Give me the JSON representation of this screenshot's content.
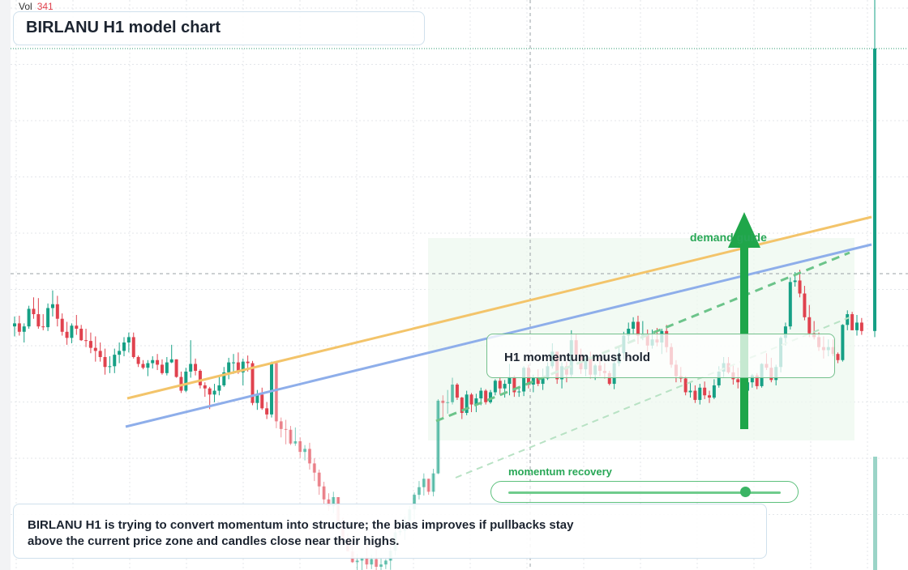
{
  "title": "BIRLANU H1 model chart",
  "volume": {
    "label": "Vol",
    "value": "341"
  },
  "annotations": {
    "hold_label": "H1 momentum must hold",
    "recovery_label": "momentum recovery",
    "demand_label": "demand guide",
    "note": "BIRLANU H1 is trying to convert momentum into structure; the bias improves if pullbacks stay above the current price zone and candles close near their highs."
  },
  "momentum_slider": {
    "level": 0.87
  },
  "colors": {
    "up": "#16a085",
    "down": "#e0424e",
    "orange_line": "#f3c46a",
    "blue_line": "#8eaeea",
    "green": "#1fa64a",
    "zone": "#eef8ef"
  },
  "chart_data": {
    "type": "candlestick",
    "title": "BIRLANU H1 model chart",
    "grid": true,
    "yrange": [
      0,
      100
    ],
    "candles": [
      [
        55.8,
        57.1,
        54.5,
        56.2
      ],
      [
        56.2,
        57.2,
        54.6,
        55.1
      ],
      [
        55.1,
        56.2,
        53.7,
        55.8
      ],
      [
        55.8,
        58.5,
        55.5,
        58.1
      ],
      [
        58.1,
        59.6,
        56.8,
        57.4
      ],
      [
        57.4,
        59.5,
        55.5,
        55.8
      ],
      [
        55.8,
        57.4,
        55.3,
        55.7
      ],
      [
        55.7,
        58.8,
        55.2,
        58.2
      ],
      [
        58.2,
        60.5,
        57.1,
        58.7
      ],
      [
        58.7,
        59.8,
        55.8,
        56.8
      ],
      [
        56.8,
        57.5,
        54.6,
        55.1
      ],
      [
        55.1,
        56.4,
        53.4,
        54.3
      ],
      [
        54.3,
        56.2,
        53.6,
        55.9
      ],
      [
        55.9,
        57.3,
        54.7,
        55.5
      ],
      [
        55.5,
        56.0,
        53.9,
        54.0
      ],
      [
        54.0,
        55.5,
        53.1,
        53.9
      ],
      [
        53.9,
        55.0,
        52.3,
        53.0
      ],
      [
        53.0,
        54.5,
        51.2,
        52.6
      ],
      [
        52.6,
        53.7,
        51.2,
        51.8
      ],
      [
        51.8,
        52.9,
        49.5,
        50.5
      ],
      [
        50.5,
        51.9,
        49.7,
        50.6
      ],
      [
        50.6,
        52.9,
        49.7,
        52.1
      ],
      [
        52.1,
        53.7,
        51.0,
        52.6
      ],
      [
        52.6,
        54.4,
        51.9,
        53.7
      ],
      [
        53.7,
        55.0,
        52.4,
        54.4
      ],
      [
        54.4,
        55.0,
        51.6,
        51.8
      ],
      [
        51.8,
        52.0,
        50.5,
        50.9
      ],
      [
        50.9,
        51.4,
        50.2,
        50.4
      ],
      [
        50.4,
        51.4,
        49.3,
        51.0
      ],
      [
        51.0,
        51.9,
        50.3,
        51.4
      ],
      [
        51.4,
        52.2,
        50.1,
        50.8
      ],
      [
        50.8,
        51.5,
        49.5,
        49.7
      ],
      [
        49.7,
        51.8,
        49.4,
        51.1
      ],
      [
        51.1,
        53.4,
        51.0,
        51.5
      ],
      [
        51.5,
        51.5,
        49.1,
        49.2
      ],
      [
        49.2,
        49.9,
        47.1,
        47.4
      ],
      [
        47.4,
        50.4,
        47.2,
        49.9
      ],
      [
        49.9,
        54.0,
        49.1,
        50.9
      ],
      [
        50.9,
        51.6,
        49.4,
        50.0
      ],
      [
        50.0,
        50.2,
        47.7,
        48.1
      ],
      [
        48.1,
        48.5,
        46.6,
        47.7
      ],
      [
        47.7,
        47.9,
        45.0,
        46.9
      ],
      [
        46.9,
        48.3,
        45.9,
        47.4
      ],
      [
        47.4,
        49.2,
        46.8,
        48.1
      ],
      [
        48.1,
        50.5,
        47.9,
        49.8
      ],
      [
        49.8,
        51.7,
        48.9,
        51.1
      ],
      [
        51.1,
        52.2,
        49.6,
        51.1
      ],
      [
        51.1,
        52.4,
        49.6,
        49.8
      ],
      [
        49.8,
        51.6,
        48.1,
        51.2
      ],
      [
        51.2,
        52.0,
        49.9,
        51.0
      ],
      [
        51.0,
        51.3,
        45.5,
        45.8
      ],
      [
        45.8,
        47.5,
        44.9,
        46.9
      ],
      [
        46.9,
        47.8,
        44.9,
        45.1
      ],
      [
        45.1,
        45.9,
        43.7,
        44.3
      ],
      [
        44.3,
        51.2,
        43.9,
        51.0
      ],
      [
        51.0,
        51.3,
        42.5,
        43.4
      ],
      [
        43.4,
        43.9,
        41.3,
        42.4
      ],
      [
        42.4,
        43.6,
        40.4,
        42.3
      ],
      [
        42.3,
        42.8,
        40.3,
        40.5
      ],
      [
        40.5,
        42.6,
        40.2,
        40.8
      ],
      [
        40.8,
        41.3,
        38.6,
        39.4
      ],
      [
        39.4,
        40.3,
        38.3,
        39.8
      ],
      [
        39.8,
        40.6,
        37.1,
        37.9
      ],
      [
        37.9,
        38.6,
        35.6,
        36.7
      ],
      [
        36.7,
        37.1,
        33.8,
        34.9
      ],
      [
        34.9,
        35.5,
        32.6,
        33.2
      ],
      [
        33.2,
        34.0,
        31.7,
        32.3
      ],
      [
        32.3,
        34.2,
        31.4,
        33.5
      ],
      [
        33.5,
        33.5,
        30.2,
        30.3
      ],
      [
        30.3,
        30.8,
        27.5,
        28.1
      ],
      [
        28.1,
        28.7,
        26.4,
        26.4
      ],
      [
        26.4,
        27.3,
        24.9,
        25.0
      ],
      [
        25.0,
        26.1,
        23.6,
        25.2
      ],
      [
        25.2,
        25.7,
        23.7,
        25.6
      ],
      [
        25.6,
        27.4,
        24.1,
        24.7
      ],
      [
        24.7,
        26.0,
        24.1,
        25.4
      ],
      [
        25.4,
        26.6,
        23.9,
        24.4
      ],
      [
        24.4,
        25.6,
        23.1,
        24.7
      ],
      [
        24.7,
        25.4,
        24.1,
        25.2
      ],
      [
        25.2,
        27.0,
        24.0,
        26.5
      ],
      [
        26.5,
        29.3,
        25.9,
        28.9
      ],
      [
        28.9,
        30.2,
        28.5,
        29.1
      ],
      [
        29.1,
        31.0,
        27.9,
        30.4
      ],
      [
        30.4,
        32.4,
        29.9,
        31.9
      ],
      [
        31.9,
        34.1,
        30.6,
        33.8
      ],
      [
        33.8,
        35.6,
        33.2,
        34.8
      ],
      [
        34.8,
        36.6,
        33.7,
        35.9
      ],
      [
        35.9,
        35.9,
        33.8,
        34.2
      ],
      [
        34.2,
        37.2,
        33.6,
        36.6
      ],
      [
        36.6,
        46.3,
        36.5,
        46.1
      ],
      [
        46.1,
        46.8,
        43.8,
        45.8
      ],
      [
        45.8,
        47.5,
        44.4,
        45.9
      ],
      [
        45.9,
        49.1,
        45.6,
        48.2
      ],
      [
        48.2,
        48.4,
        46.2,
        46.5
      ],
      [
        46.5,
        46.6,
        43.7,
        44.5
      ],
      [
        44.5,
        47.4,
        44.2,
        46.9
      ],
      [
        46.9,
        47.1,
        44.6,
        45.6
      ],
      [
        45.6,
        47.0,
        44.6,
        46.4
      ],
      [
        46.4,
        47.8,
        45.5,
        47.4
      ],
      [
        47.4,
        47.6,
        45.6,
        45.9
      ],
      [
        45.9,
        47.5,
        45.7,
        47.2
      ],
      [
        47.2,
        48.9,
        46.8,
        48.7
      ],
      [
        48.7,
        49.2,
        46.9,
        47.7
      ],
      [
        47.7,
        48.8,
        46.5,
        48.3
      ],
      [
        48.3,
        50.9,
        46.8,
        49.2
      ],
      [
        49.2,
        49.4,
        46.6,
        47.2
      ],
      [
        47.2,
        48.0,
        46.6,
        47.3
      ],
      [
        47.3,
        50.6,
        46.7,
        50.4
      ],
      [
        50.4,
        50.8,
        47.7,
        48.2
      ],
      [
        48.2,
        49.5,
        47.2,
        49.1
      ],
      [
        49.1,
        50.2,
        48.0,
        48.3
      ],
      [
        48.3,
        50.3,
        47.5,
        49.0
      ],
      [
        49.0,
        51.1,
        48.8,
        50.6
      ],
      [
        50.6,
        53.6,
        50.3,
        52.5
      ],
      [
        52.5,
        52.5,
        48.3,
        48.9
      ],
      [
        48.9,
        51.1,
        47.7,
        50.6
      ],
      [
        50.6,
        51.2,
        48.5,
        49.5
      ],
      [
        49.5,
        55.3,
        49.2,
        54.0
      ],
      [
        54.0,
        54.8,
        51.3,
        52.1
      ],
      [
        52.1,
        52.9,
        49.6,
        50.2
      ],
      [
        50.2,
        51.9,
        49.3,
        51.6
      ],
      [
        51.6,
        52.5,
        49.0,
        49.5
      ],
      [
        49.5,
        50.9,
        48.8,
        50.7
      ],
      [
        50.7,
        51.8,
        49.3,
        50.0
      ],
      [
        50.0,
        51.0,
        49.0,
        49.7
      ],
      [
        49.7,
        50.0,
        48.1,
        48.3
      ],
      [
        48.3,
        51.2,
        47.6,
        51.0
      ],
      [
        51.0,
        53.2,
        50.6,
        52.3
      ],
      [
        52.3,
        55.1,
        51.5,
        54.6
      ],
      [
        54.6,
        56.3,
        53.9,
        55.5
      ],
      [
        55.5,
        57.0,
        54.7,
        56.4
      ],
      [
        56.4,
        57.2,
        53.5,
        54.6
      ],
      [
        54.6,
        56.5,
        54.0,
        54.8
      ],
      [
        54.8,
        55.4,
        52.5,
        53.3
      ],
      [
        53.3,
        55.4,
        52.9,
        54.1
      ],
      [
        54.1,
        55.6,
        53.2,
        53.7
      ],
      [
        53.7,
        55.5,
        52.2,
        55.2
      ],
      [
        55.2,
        56.0,
        52.4,
        53.1
      ],
      [
        53.1,
        53.6,
        50.4,
        50.8
      ],
      [
        50.8,
        51.4,
        48.5,
        49.3
      ],
      [
        49.3,
        50.5,
        48.5,
        49.0
      ],
      [
        49.0,
        49.3,
        46.8,
        47.2
      ],
      [
        47.2,
        48.4,
        46.5,
        47.4
      ],
      [
        47.4,
        48.1,
        45.8,
        46.2
      ],
      [
        46.2,
        48.3,
        45.6,
        47.8
      ],
      [
        47.8,
        48.6,
        46.3,
        46.8
      ],
      [
        46.8,
        47.4,
        45.8,
        46.5
      ],
      [
        46.5,
        48.9,
        46.3,
        48.1
      ],
      [
        48.1,
        50.6,
        47.8,
        49.9
      ],
      [
        49.9,
        51.8,
        49.2,
        51.0
      ],
      [
        51.0,
        51.8,
        49.6,
        49.8
      ],
      [
        49.8,
        50.7,
        48.2,
        48.9
      ],
      [
        48.9,
        50.4,
        47.7,
        48.5
      ],
      [
        48.5,
        48.8,
        47.2,
        47.4
      ],
      [
        47.4,
        48.6,
        46.7,
        48.5
      ],
      [
        48.5,
        49.6,
        47.8,
        49.4
      ],
      [
        49.4,
        49.7,
        47.6,
        48.0
      ],
      [
        48.0,
        51.0,
        47.8,
        50.9
      ],
      [
        50.9,
        52.3,
        50.1,
        50.4
      ],
      [
        50.4,
        51.7,
        48.5,
        48.8
      ],
      [
        48.8,
        50.8,
        48.1,
        50.5
      ],
      [
        50.5,
        54.5,
        49.8,
        54.3
      ],
      [
        54.3,
        56.3,
        53.3,
        55.8
      ],
      [
        55.8,
        62.2,
        55.4,
        61.6
      ],
      [
        61.6,
        62.9,
        61.0,
        61.8
      ],
      [
        61.8,
        63.2,
        59.6,
        60.1
      ],
      [
        60.1,
        61.1,
        56.6,
        57.0
      ],
      [
        57.0,
        58.6,
        54.4,
        54.9
      ],
      [
        54.9,
        56.5,
        54.1,
        54.4
      ],
      [
        54.4,
        55.0,
        52.6,
        53.1
      ],
      [
        53.1,
        54.5,
        51.6,
        52.7
      ],
      [
        52.7,
        54.1,
        51.9,
        53.1
      ],
      [
        53.1,
        54.1,
        51.9,
        52.2
      ],
      [
        52.2,
        52.4,
        51.0,
        51.4
      ],
      [
        51.4,
        56.1,
        51.2,
        56.0
      ],
      [
        56.0,
        57.9,
        55.3,
        57.4
      ],
      [
        57.4,
        57.7,
        55.3,
        55.3
      ],
      [
        55.3,
        57.3,
        54.6,
        56.3
      ],
      [
        56.3,
        56.9,
        54.7,
        55.2
      ],
      [
        55.2,
        102.0,
        54.4,
        92.1
      ]
    ],
    "volume_bars": [
      341
    ]
  }
}
